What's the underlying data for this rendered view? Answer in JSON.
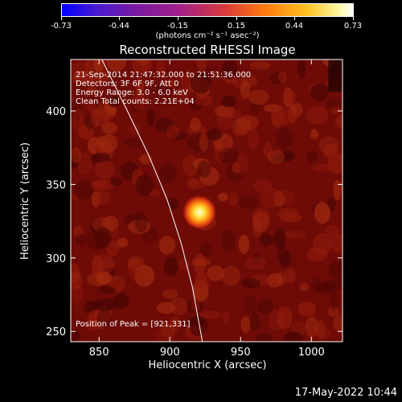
{
  "colorbar": {
    "tick_labels": [
      "-0.73",
      "-0.44",
      "-0.15",
      "0.15",
      "0.44",
      "0.73"
    ],
    "unit_label": "(photons cm⁻² s⁻¹ asec⁻²)"
  },
  "chart_data": {
    "type": "heatmap",
    "title": "Reconstructed RHESSI Image",
    "xlabel": "Heliocentric X (arcsec)",
    "ylabel": "Heliocentric Y (arcsec)",
    "xlim": [
      830,
      1022
    ],
    "ylim": [
      243,
      435
    ],
    "x_ticks": [
      850,
      900,
      950,
      1000
    ],
    "y_ticks": [
      250,
      300,
      350,
      400
    ],
    "peak": {
      "x": 921,
      "y": 331
    },
    "value_range": [
      -0.73,
      0.73
    ],
    "limb_curve": [
      [
        852,
        435
      ],
      [
        870,
        400
      ],
      [
        885,
        370
      ],
      [
        898,
        340
      ],
      [
        908,
        310
      ],
      [
        916,
        280
      ],
      [
        923,
        243
      ]
    ],
    "colors": {
      "background": "#000000",
      "limb": "#ffffff",
      "map_base": "#7a0c08",
      "peak": "#ffffb0"
    }
  },
  "annotations": {
    "line1": "21-Sep-2014 21:47:32.000 to 21:51:36.000",
    "line2": "Detectors: 3F 6F 9F, Att 0",
    "line3": "Energy Range: 3.0 - 6.0 keV",
    "line4": "Clean     Total counts: 2.21E+04",
    "peak_label": "Position of Peak = [921,331]"
  },
  "footer": {
    "date": "17-May-2022 10:44"
  }
}
